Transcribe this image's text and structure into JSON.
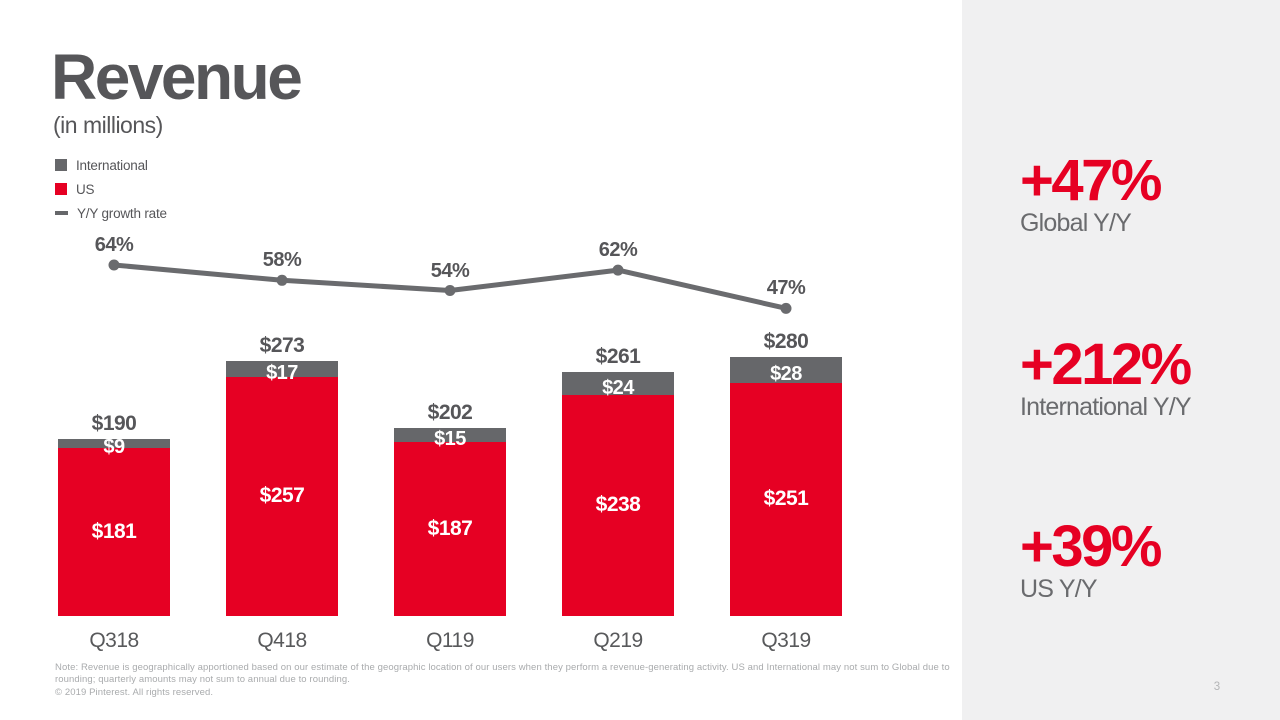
{
  "header": {
    "title": "Revenue",
    "subtitle": "(in millions)"
  },
  "legend": [
    {
      "label": "International",
      "swatch": "square",
      "color": "#66676a"
    },
    {
      "label": "US",
      "swatch": "square",
      "color": "#e60023"
    },
    {
      "label": "Y/Y growth rate",
      "swatch": "dash",
      "color": "#66676a"
    }
  ],
  "chart_data": {
    "type": "bar",
    "subtype": "stacked-bars-with-growth-line",
    "categories": [
      "Q318",
      "Q418",
      "Q119",
      "Q219",
      "Q319"
    ],
    "series": [
      {
        "name": "US",
        "color": "#e60023",
        "values": [
          181,
          257,
          187,
          238,
          251
        ],
        "labels": [
          "$181",
          "$257",
          "$187",
          "$238",
          "$251"
        ]
      },
      {
        "name": "International",
        "color": "#66676a",
        "values": [
          9,
          17,
          15,
          24,
          28
        ],
        "labels": [
          "$9",
          "$17",
          "$15",
          "$24",
          "$28"
        ]
      }
    ],
    "totals": {
      "values": [
        190,
        273,
        202,
        261,
        280
      ],
      "labels": [
        "$190",
        "$273",
        "$202",
        "$261",
        "$280"
      ]
    },
    "line": {
      "name": "Y/Y growth rate",
      "color": "#6a6b6e",
      "values": [
        64,
        58,
        54,
        62,
        47
      ],
      "labels": [
        "64%",
        "58%",
        "54%",
        "62%",
        "47%"
      ]
    },
    "title": "Revenue (in millions)",
    "xlabel": "",
    "ylabel": "",
    "legend_position": "top-left",
    "grid": false
  },
  "stats": [
    {
      "value": "+47%",
      "label": "Global Y/Y"
    },
    {
      "value": "+212%",
      "label": "International Y/Y"
    },
    {
      "value": "+39%",
      "label": "US Y/Y"
    }
  ],
  "footer": {
    "note_line1": "Note: Revenue is geographically apportioned based on our estimate of the geographic location of our users when they perform a revenue-generating activity. US and International may not sum to Global due to",
    "note_line2": "rounding; quarterly amounts may not sum to annual due to rounding.",
    "copyright": "© 2019 Pinterest. All rights reserved."
  },
  "page": {
    "number": "3"
  },
  "colors": {
    "red": "#e60023",
    "gray": "#66676a",
    "dark_text": "#565659",
    "panel_bg": "#f0f0f1"
  }
}
